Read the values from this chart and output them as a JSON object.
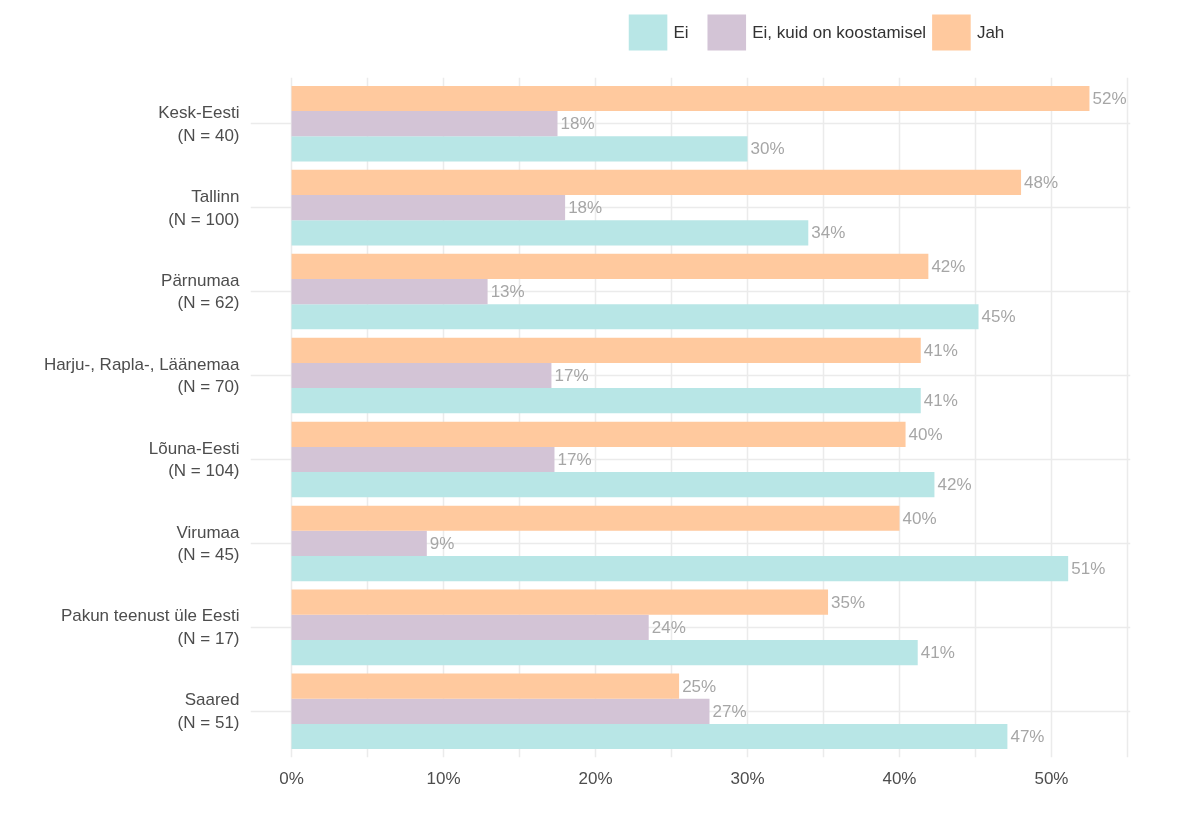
{
  "chart_data": {
    "type": "bar",
    "orientation": "horizontal",
    "categories": [
      "Kesk-Eesti\n(N = 40)",
      "Tallinn\n(N = 100)",
      "Pärnumaa\n(N = 62)",
      "Harju-, Rapla-, Läänemaa\n(N = 70)",
      "Lõuna-Eesti\n(N = 104)",
      "Virumaa\n(N = 45)",
      "Pakun teenust üle Eesti\n(N = 17)",
      "Saared\n(N = 51)"
    ],
    "series": [
      {
        "name": "Ei",
        "color": "#b8e6e6",
        "values": [
          30,
          34,
          45.2,
          41.4,
          42.3,
          51.1,
          41.2,
          47.1
        ],
        "value_labels": [
          "30%",
          "34%",
          "45%",
          "41%",
          "42%",
          "51%",
          "41%",
          "47%"
        ]
      },
      {
        "name": "Ei, kuid on koostamisel",
        "color": "#d3c4d6",
        "values": [
          17.5,
          18,
          12.9,
          17.1,
          17.3,
          8.9,
          23.5,
          27.5
        ],
        "value_labels": [
          "18%",
          "18%",
          "13%",
          "17%",
          "17%",
          "9%",
          "24%",
          "27%"
        ]
      },
      {
        "name": "Jah",
        "color": "#ffc99e",
        "values": [
          52.5,
          48,
          41.9,
          41.4,
          40.4,
          40,
          35.3,
          25.5
        ],
        "value_labels": [
          "52%",
          "48%",
          "42%",
          "41%",
          "40%",
          "40%",
          "35%",
          "25%"
        ]
      }
    ],
    "xlim": [
      -2.7,
      55.2
    ],
    "xticks": [
      {
        "value": 0,
        "label": "0%"
      },
      {
        "value": 5,
        "label": null
      },
      {
        "value": 10,
        "label": "10%"
      },
      {
        "value": 15,
        "label": null
      },
      {
        "value": 20,
        "label": "20%"
      },
      {
        "value": 25,
        "label": null
      },
      {
        "value": 30,
        "label": "30%"
      },
      {
        "value": 35,
        "label": null
      },
      {
        "value": 40,
        "label": "40%"
      },
      {
        "value": 45,
        "label": null
      },
      {
        "value": 50,
        "label": "50%"
      },
      {
        "value": 55,
        "label": null
      }
    ],
    "grid": true,
    "legend": "top"
  }
}
